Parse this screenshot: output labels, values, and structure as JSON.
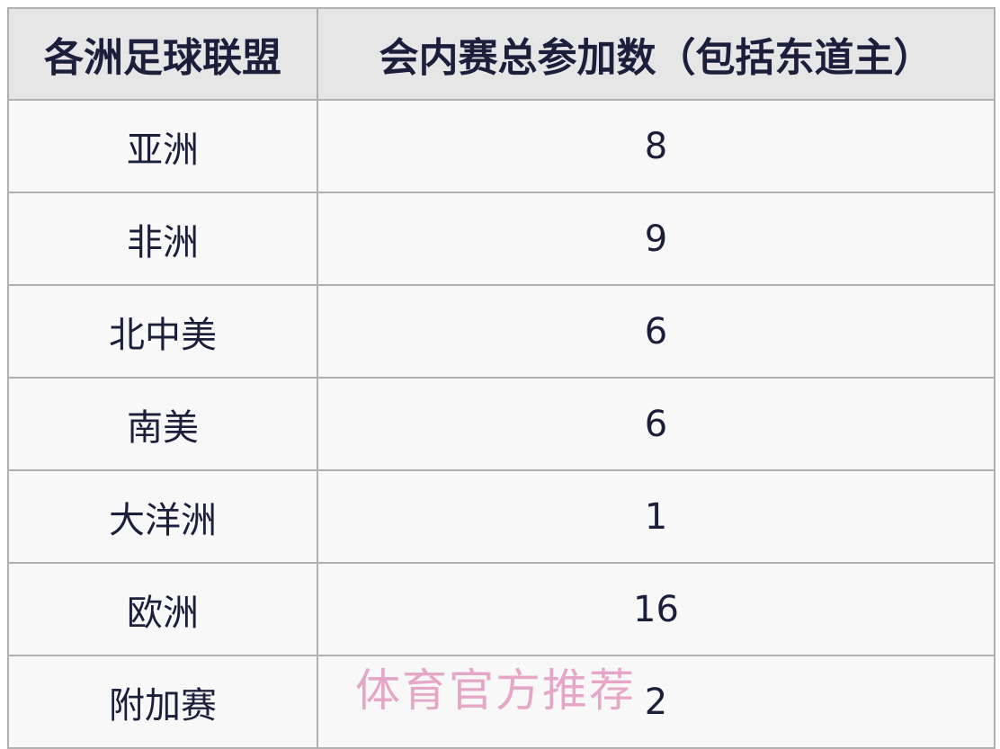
{
  "table": {
    "header": [
      "各洲足球联盟",
      "会内赛总参加数（包括东道主）"
    ],
    "rows": [
      [
        "亚洲",
        8
      ],
      [
        "非洲",
        9
      ],
      [
        "北中美",
        6
      ],
      [
        "南美",
        6
      ],
      [
        "大洋洲",
        1
      ],
      [
        "欧洲",
        16
      ],
      [
        "附加赛",
        2
      ]
    ]
  },
  "watermark": "体育官方推荐"
}
